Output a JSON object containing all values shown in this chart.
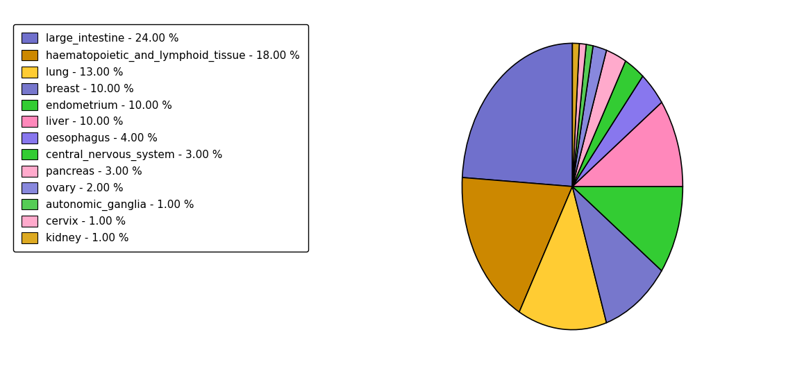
{
  "labels": [
    "large_intestine - 24.00 %",
    "haematopoietic_and_lymphoid_tissue - 18.00 %",
    "lung - 13.00 %",
    "breast - 10.00 %",
    "endometrium - 10.00 %",
    "liver - 10.00 %",
    "oesophagus - 4.00 %",
    "central_nervous_system - 3.00 %",
    "pancreas - 3.00 %",
    "ovary - 2.00 %",
    "autonomic_ganglia - 1.00 %",
    "cervix - 1.00 %",
    "kidney - 1.00 %"
  ],
  "values": [
    24,
    18,
    13,
    10,
    10,
    10,
    4,
    3,
    3,
    2,
    1,
    1,
    1
  ],
  "colors": [
    "#7070cc",
    "#cc8800",
    "#ffcc33",
    "#7777cc",
    "#33cc33",
    "#ff88bb",
    "#8877ee",
    "#33cc33",
    "#ffaacc",
    "#8888dd",
    "#55cc55",
    "#ffaacc",
    "#ddaa22"
  ],
  "figsize": [
    11.45,
    5.38
  ],
  "dpi": 100,
  "legend_fontsize": 11
}
